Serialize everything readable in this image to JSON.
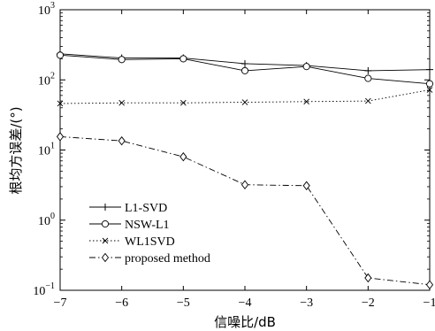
{
  "chart_data": {
    "type": "line",
    "title": "",
    "xlabel": "信噪比/dB",
    "ylabel": "根均方误差/(°)",
    "x": [
      -7,
      -6,
      -5,
      -4,
      -3,
      -2,
      -1
    ],
    "xlim": [
      -7,
      -1
    ],
    "ylim": [
      0.1,
      1000
    ],
    "yscale": "log",
    "xticks": [
      "−7",
      "−6",
      "−5",
      "−4",
      "−3",
      "−2",
      "−1"
    ],
    "yticks": [
      {
        "base": "10",
        "exp": "−1",
        "value": 0.1
      },
      {
        "base": "10",
        "exp": "0",
        "value": 1
      },
      {
        "base": "10",
        "exp": "1",
        "value": 10
      },
      {
        "base": "10",
        "exp": "2",
        "value": 100
      },
      {
        "base": "10",
        "exp": "3",
        "value": 1000
      }
    ],
    "grid": false,
    "legend_position": "lower-left",
    "series": [
      {
        "name": "L1-SVD",
        "marker": "plus",
        "dash": "solid",
        "values": [
          235,
          205,
          205,
          170,
          160,
          135,
          140
        ]
      },
      {
        "name": "NSW-L1",
        "marker": "circle",
        "dash": "solid",
        "values": [
          225,
          195,
          200,
          135,
          155,
          105,
          88
        ]
      },
      {
        "name": "WL1SVD",
        "marker": "x",
        "dash": "dotted",
        "values": [
          46,
          47,
          47,
          48,
          49,
          50,
          72
        ]
      },
      {
        "name": "proposed method",
        "marker": "diamond",
        "dash": "dashdot",
        "values": [
          15.5,
          13.5,
          8.0,
          3.2,
          3.1,
          0.15,
          0.12
        ]
      }
    ]
  }
}
